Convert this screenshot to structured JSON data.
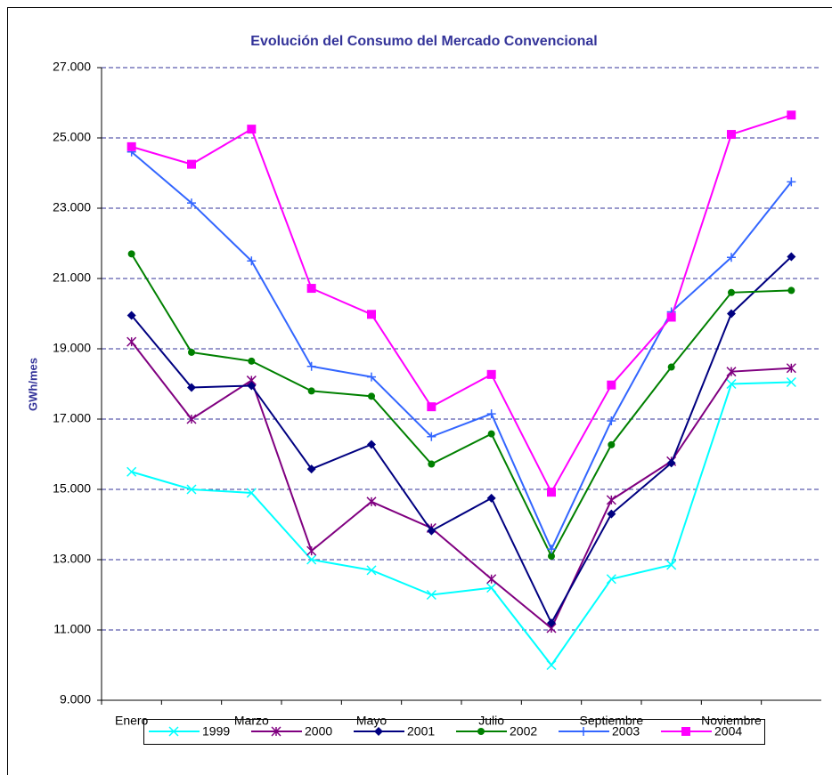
{
  "chart_data": {
    "type": "line",
    "title": "Evolución del Consumo del Mercado Convencional",
    "ylabel": "GWh/mes",
    "categories": [
      "Enero",
      null,
      "Marzo",
      null,
      "Mayo",
      null,
      "Julio",
      null,
      "Septiembre",
      null,
      "Noviembre",
      null
    ],
    "ylim": [
      9000,
      27000
    ],
    "yticks": [
      {
        "value": 9000,
        "label": "9.000"
      },
      {
        "value": 11000,
        "label": "11.000"
      },
      {
        "value": 13000,
        "label": "13.000"
      },
      {
        "value": 15000,
        "label": "15.000"
      },
      {
        "value": 17000,
        "label": "17.000"
      },
      {
        "value": 19000,
        "label": "19.000"
      },
      {
        "value": 21000,
        "label": "21.000"
      },
      {
        "value": 23000,
        "label": "23.000"
      },
      {
        "value": 25000,
        "label": "25.000"
      },
      {
        "value": 27000,
        "label": "27.000"
      }
    ],
    "grid": true,
    "legend": "bottom",
    "series": [
      {
        "name": "1999",
        "color": "#00ffff",
        "marker": "x",
        "values": [
          15500,
          15000,
          14900,
          13000,
          12700,
          12000,
          12200,
          10000,
          12450,
          12850,
          18000,
          18050
        ]
      },
      {
        "name": "2000",
        "color": "#800080",
        "marker": "asterisk",
        "values": [
          19200,
          17000,
          18100,
          13250,
          14650,
          13900,
          12450,
          11050,
          14700,
          15800,
          18350,
          18450
        ]
      },
      {
        "name": "2001",
        "color": "#000080",
        "marker": "diamond",
        "values": [
          19950,
          17900,
          17950,
          15580,
          16280,
          13820,
          14750,
          11200,
          14300,
          15750,
          20000,
          21620
        ]
      },
      {
        "name": "2002",
        "color": "#008000",
        "marker": "circle",
        "values": [
          21700,
          18900,
          18650,
          17800,
          17650,
          15720,
          16580,
          13100,
          16270,
          18480,
          20600,
          20660
        ]
      },
      {
        "name": "2003",
        "color": "#3366ff",
        "marker": "plus",
        "values": [
          24600,
          23150,
          21500,
          18500,
          18200,
          16500,
          17150,
          13300,
          16950,
          20050,
          21600,
          23750
        ]
      },
      {
        "name": "2004",
        "color": "#ff00ff",
        "marker": "square",
        "values": [
          24750,
          24250,
          25250,
          20720,
          19980,
          17350,
          18270,
          14920,
          17970,
          19900,
          25100,
          25650
        ]
      }
    ]
  }
}
